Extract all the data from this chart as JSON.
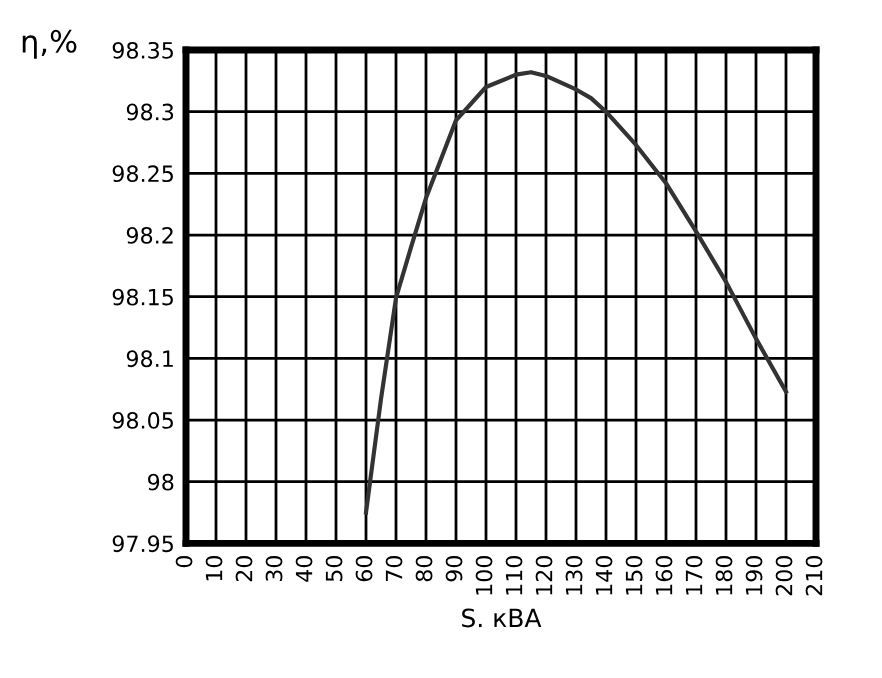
{
  "chart_data": {
    "type": "line",
    "xlabel": "S. кВА",
    "ylabel": "η,%",
    "series": [
      {
        "color": "#333333",
        "x": [
          60,
          65,
          70,
          75,
          80,
          90,
          100,
          110,
          115,
          120,
          130,
          135,
          140,
          150,
          160,
          170,
          180,
          190,
          200
        ],
        "values": [
          97.975,
          98.067,
          98.149,
          98.19,
          98.23,
          98.293,
          98.32,
          98.33,
          98.332,
          98.329,
          98.318,
          98.311,
          98.3,
          98.273,
          98.242,
          98.203,
          98.162,
          98.116,
          98.073
        ]
      }
    ],
    "xlim": [
      0,
      210
    ],
    "xticks": [
      0,
      10,
      20,
      30,
      40,
      50,
      60,
      70,
      80,
      90,
      100,
      110,
      120,
      130,
      140,
      150,
      160,
      170,
      180,
      190,
      200,
      210
    ],
    "ylim": [
      97.95,
      98.35
    ],
    "yticks": [
      {
        "value": 97.95,
        "label": "97.95"
      },
      {
        "value": 98,
        "label": "98"
      },
      {
        "value": 98.05,
        "label": "98.05"
      },
      {
        "value": 98.1,
        "label": "98.1"
      },
      {
        "value": 98.15,
        "label": "98.15"
      },
      {
        "value": 98.2,
        "label": "98.2"
      },
      {
        "value": 98.25,
        "label": "98.25"
      },
      {
        "value": 98.3,
        "label": "98.3"
      },
      {
        "value": 98.35,
        "label": "98.35"
      }
    ],
    "grid": true,
    "marker": "none",
    "line_style": "solid"
  }
}
